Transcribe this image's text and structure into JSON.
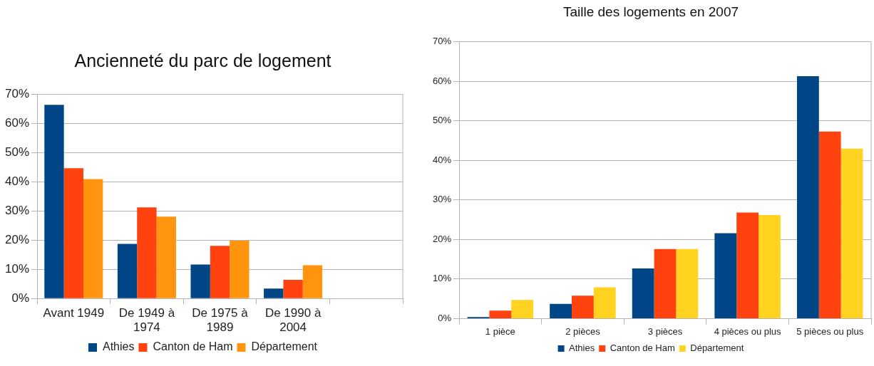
{
  "chart_data": [
    {
      "type": "bar",
      "title": "Ancienneté du parc de logement",
      "categories": [
        "Avant 1949",
        "De 1949 à 1974",
        "De 1975 à 1989",
        "De 1990 à 2004",
        null
      ],
      "series": [
        {
          "name": "Athies",
          "color": "#004586",
          "values": [
            66.3,
            18.7,
            11.6,
            3.4,
            null
          ]
        },
        {
          "name": "Canton de Ham",
          "color": "#ff420e",
          "values": [
            44.6,
            31.2,
            18.0,
            6.4,
            null
          ]
        },
        {
          "name": "Département",
          "color": "#ff950e",
          "values": [
            40.9,
            28.0,
            19.8,
            11.4,
            null
          ]
        }
      ],
      "ylim": [
        0,
        70
      ],
      "yticks": [
        {
          "value": 0,
          "label": "0%"
        },
        {
          "value": 10,
          "label": "10%"
        },
        {
          "value": 20,
          "label": "20%"
        },
        {
          "value": 30,
          "label": "30%"
        },
        {
          "value": 40,
          "label": "40%"
        },
        {
          "value": 50,
          "label": "50%"
        },
        {
          "value": 60,
          "label": "60%"
        },
        {
          "value": 70,
          "label": "70%"
        }
      ],
      "grid": "y",
      "legend": "bottom"
    },
    {
      "type": "bar",
      "title": "Taille des logements en 2007",
      "categories": [
        "1 pièce",
        "2 pièces",
        "3 pièces",
        "4 pièces ou plus",
        "5 pièces ou plus"
      ],
      "series": [
        {
          "name": "Athies",
          "color": "#004586",
          "values": [
            0.4,
            3.7,
            12.7,
            21.6,
            61.3
          ]
        },
        {
          "name": "Canton de Ham",
          "color": "#ff420e",
          "values": [
            2.0,
            5.8,
            17.6,
            26.8,
            47.3
          ]
        },
        {
          "name": "Département",
          "color": "#ffd320",
          "values": [
            4.7,
            7.9,
            17.6,
            26.2,
            43.0
          ]
        }
      ],
      "ylim": [
        0,
        70
      ],
      "yticks": [
        {
          "value": 0,
          "label": "0%"
        },
        {
          "value": 10,
          "label": "10%"
        },
        {
          "value": 20,
          "label": "20%"
        },
        {
          "value": 30,
          "label": "30%"
        },
        {
          "value": 40,
          "label": "40%"
        },
        {
          "value": 50,
          "label": "50%"
        },
        {
          "value": 60,
          "label": "60%"
        },
        {
          "value": 70,
          "label": "70%"
        }
      ],
      "grid": "y",
      "legend": "bottom"
    }
  ]
}
